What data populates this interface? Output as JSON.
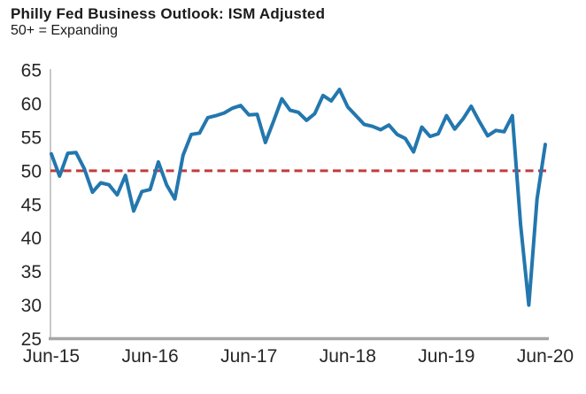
{
  "header": {
    "title": "Philly Fed Business Outlook: ISM Adjusted",
    "subtitle": "50+ = Expanding"
  },
  "chart_data": {
    "type": "line",
    "title": "Philly Fed Business Outlook: ISM Adjusted",
    "subtitle": "50+ = Expanding",
    "x": [
      "Jun-15",
      "Jul-15",
      "Aug-15",
      "Sep-15",
      "Oct-15",
      "Nov-15",
      "Dec-15",
      "Jan-16",
      "Feb-16",
      "Mar-16",
      "Apr-16",
      "May-16",
      "Jun-16",
      "Jul-16",
      "Aug-16",
      "Sep-16",
      "Oct-16",
      "Nov-16",
      "Dec-16",
      "Jan-17",
      "Feb-17",
      "Mar-17",
      "Apr-17",
      "May-17",
      "Jun-17",
      "Jul-17",
      "Aug-17",
      "Sep-17",
      "Oct-17",
      "Nov-17",
      "Dec-17",
      "Jan-18",
      "Feb-18",
      "Mar-18",
      "Apr-18",
      "May-18",
      "Jun-18",
      "Jul-18",
      "Aug-18",
      "Sep-18",
      "Oct-18",
      "Nov-18",
      "Dec-18",
      "Jan-19",
      "Feb-19",
      "Mar-19",
      "Apr-19",
      "May-19",
      "Jun-19",
      "Jul-19",
      "Aug-19",
      "Sep-19",
      "Oct-19",
      "Nov-19",
      "Dec-19",
      "Jan-20",
      "Feb-20",
      "Mar-20",
      "Apr-20",
      "May-20",
      "Jun-20"
    ],
    "series": [
      {
        "name": "ISM Adjusted",
        "values": [
          52.5,
          49.2,
          52.6,
          52.7,
          50.3,
          46.8,
          48.2,
          47.9,
          46.4,
          49.3,
          44.0,
          46.9,
          47.2,
          51.3,
          47.9,
          45.8,
          52.3,
          55.4,
          55.6,
          57.9,
          58.2,
          58.6,
          59.3,
          59.7,
          58.3,
          58.4,
          54.2,
          57.4,
          60.7,
          59.0,
          58.7,
          57.5,
          58.5,
          61.2,
          60.4,
          62.1,
          59.5,
          58.2,
          56.9,
          56.6,
          56.1,
          56.8,
          55.4,
          54.8,
          52.8,
          56.5,
          55.1,
          55.5,
          58.2,
          56.2,
          57.7,
          59.6,
          57.3,
          55.2,
          56.0,
          55.8,
          58.2,
          42.0,
          30.0,
          45.8,
          53.9
        ]
      }
    ],
    "ylim": [
      25,
      65
    ],
    "yticks": [
      25,
      30,
      35,
      40,
      45,
      50,
      55,
      60,
      65
    ],
    "xticks": [
      "Jun-15",
      "Jun-16",
      "Jun-17",
      "Jun-18",
      "Jun-19",
      "Jun-20"
    ],
    "grid": false,
    "legend": "none",
    "reference_line": {
      "value": 50,
      "style": "dashed",
      "color": "#C43B3B"
    },
    "line_color": "#2377AE",
    "axis_color": "#A6A6A6",
    "tick_color": "#262626"
  }
}
